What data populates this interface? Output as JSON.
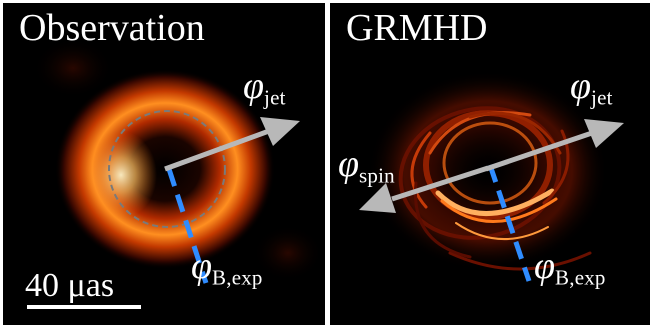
{
  "panels": {
    "observation": {
      "title": "Observation",
      "phi_jet": {
        "symbol": "φ",
        "sub": "jet"
      },
      "phi_b": {
        "symbol": "φ",
        "sub": "B,exp"
      },
      "scale_bar": "40 μas"
    },
    "grmhd": {
      "title": "GRMHD",
      "phi_jet": {
        "symbol": "φ",
        "sub": "jet"
      },
      "phi_spin": {
        "symbol": "φ",
        "sub": "spin"
      },
      "phi_b": {
        "symbol": "φ",
        "sub": "B,exp"
      }
    }
  },
  "colors": {
    "background": "#000000",
    "arrow": "#b8b8b8",
    "b_field_dashed": "#2f8cff",
    "ring_circle": "#7a7a7a",
    "ring_glow": "#ff9a1e"
  }
}
